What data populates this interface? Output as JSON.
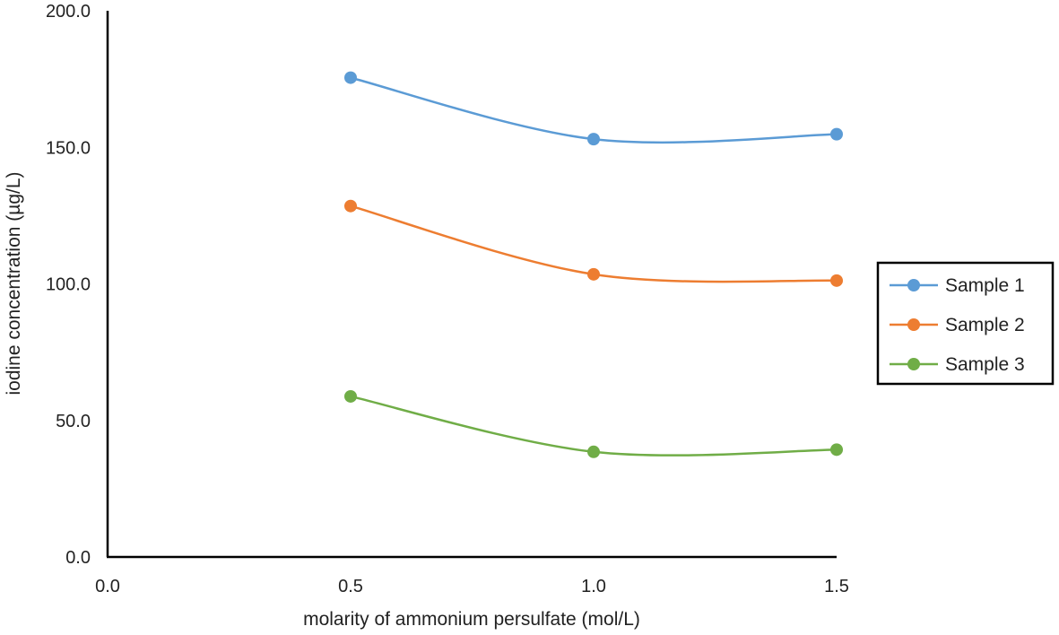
{
  "chart_data": {
    "type": "line",
    "title": "",
    "xlabel": "molarity of ammonium  persulfate (mol/L)",
    "ylabel": "iodine concentration (µg/L)",
    "xlim": [
      0.0,
      1.5
    ],
    "ylim": [
      0.0,
      200.0
    ],
    "x_ticks": [
      "0.0",
      "0.5",
      "1.0",
      "1.5"
    ],
    "y_ticks": [
      "0.0",
      "50.0",
      "100.0",
      "150.0",
      "200.0"
    ],
    "x_tick_values": [
      0.0,
      0.5,
      1.0,
      1.5
    ],
    "y_tick_values": [
      0.0,
      50.0,
      100.0,
      150.0,
      200.0
    ],
    "grid": false,
    "smooth": true,
    "legend_position": "right",
    "x": [
      0.5,
      1.0,
      1.5
    ],
    "series": [
      {
        "name": "Sample 1",
        "color": "#5b9bd5",
        "values": [
          175.5,
          153.0,
          154.8
        ]
      },
      {
        "name": "Sample 2",
        "color": "#ed7d31",
        "values": [
          128.5,
          103.5,
          101.2
        ]
      },
      {
        "name": "Sample 3",
        "color": "#70ad47",
        "values": [
          58.8,
          38.5,
          39.3
        ]
      }
    ]
  }
}
